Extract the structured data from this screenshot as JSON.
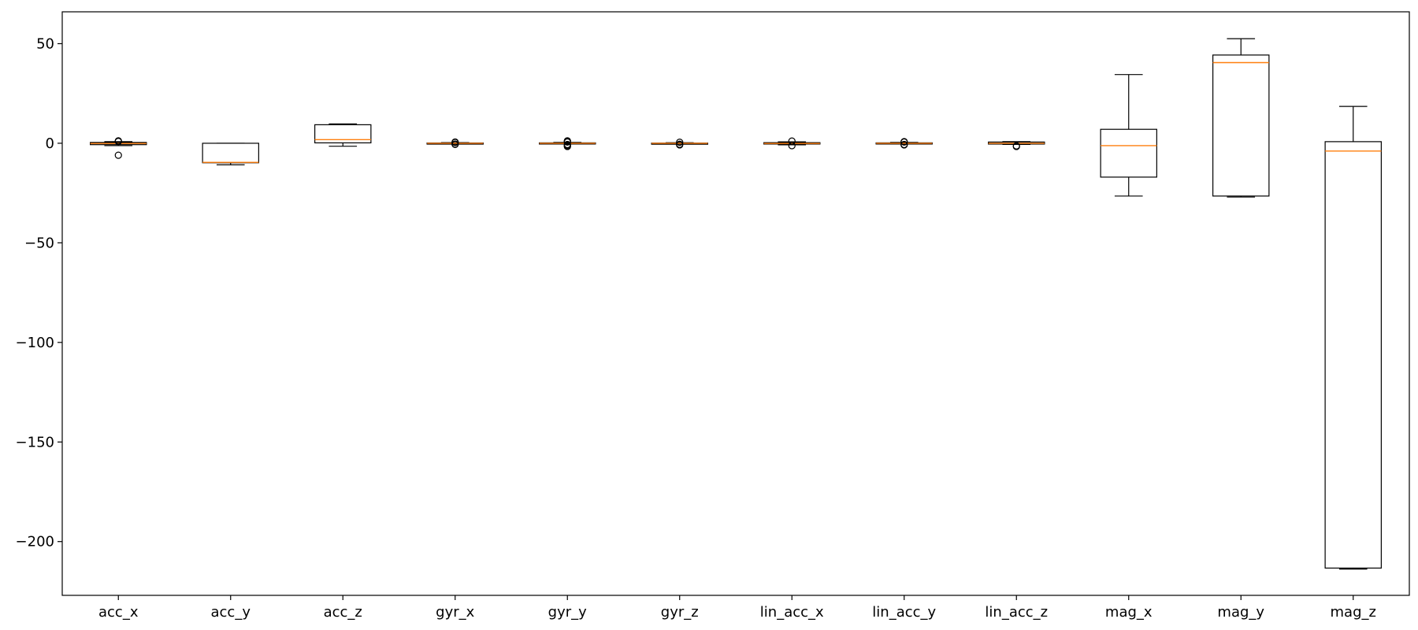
{
  "chart_data": {
    "type": "box",
    "title": "",
    "xlabel": "",
    "ylabel": "",
    "ylim": [
      -227,
      66
    ],
    "yticks": [
      50,
      0,
      -50,
      -100,
      -150,
      -200
    ],
    "ytick_labels": [
      "50",
      "0",
      "−50",
      "−100",
      "−150",
      "−200"
    ],
    "grid": false,
    "colors": {
      "box": "#000000",
      "median": "#ff7f0e",
      "background": "#ffffff"
    },
    "categories": [
      "acc_x",
      "acc_y",
      "acc_z",
      "gyr_x",
      "gyr_y",
      "gyr_z",
      "lin_acc_x",
      "lin_acc_y",
      "lin_acc_z",
      "mag_x",
      "mag_y",
      "mag_z"
    ],
    "boxes": [
      {
        "whisker_low": -1.2,
        "q1": -0.7,
        "median": -0.1,
        "q3": 0.4,
        "whisker_high": 0.8,
        "outliers": [
          -6,
          1.2,
          0.9
        ]
      },
      {
        "whisker_low": -10.8,
        "q1": -9.8,
        "median": -9.6,
        "q3": 0,
        "whisker_high": 0,
        "outliers": []
      },
      {
        "whisker_low": -1.5,
        "q1": 0.2,
        "median": 1.8,
        "q3": 9.3,
        "whisker_high": 9.7,
        "outliers": []
      },
      {
        "whisker_low": -0.3,
        "q1": -0.15,
        "median": 0,
        "q3": 0.15,
        "whisker_high": 0.3,
        "outliers": [
          0.6,
          -0.6,
          0.4,
          -0.4
        ]
      },
      {
        "whisker_low": -0.4,
        "q1": -0.2,
        "median": 0,
        "q3": 0.2,
        "whisker_high": 0.4,
        "outliers": [
          1.2,
          0.9,
          0.6,
          -0.6,
          -0.9,
          -1.3,
          -1.6
        ]
      },
      {
        "whisker_low": -0.25,
        "q1": -0.1,
        "median": 0,
        "q3": 0.1,
        "whisker_high": 0.25,
        "outliers": [
          0.5,
          -0.5,
          -0.8
        ]
      },
      {
        "whisker_low": -0.8,
        "q1": -0.4,
        "median": -0.1,
        "q3": 0.3,
        "whisker_high": 0.7,
        "outliers": [
          1.1,
          -1.2
        ]
      },
      {
        "whisker_low": -0.4,
        "q1": -0.2,
        "median": 0,
        "q3": 0.2,
        "whisker_high": 0.4,
        "outliers": [
          0.8,
          -0.8,
          0.6,
          -0.6
        ]
      },
      {
        "whisker_low": -0.6,
        "q1": -0.4,
        "median": 0,
        "q3": 0.6,
        "whisker_high": 0.8,
        "outliers": [
          -1.3,
          -1.6
        ]
      },
      {
        "whisker_low": -26.5,
        "q1": -17,
        "median": -1.2,
        "q3": 7,
        "whisker_high": 34.5,
        "outliers": []
      },
      {
        "whisker_low": -27,
        "q1": -26.5,
        "median": 40.5,
        "q3": 44.3,
        "whisker_high": 52.5,
        "outliers": []
      },
      {
        "whisker_low": -213.8,
        "q1": -213.3,
        "median": -3.9,
        "q3": 0.8,
        "whisker_high": 18.5,
        "outliers": []
      }
    ]
  }
}
